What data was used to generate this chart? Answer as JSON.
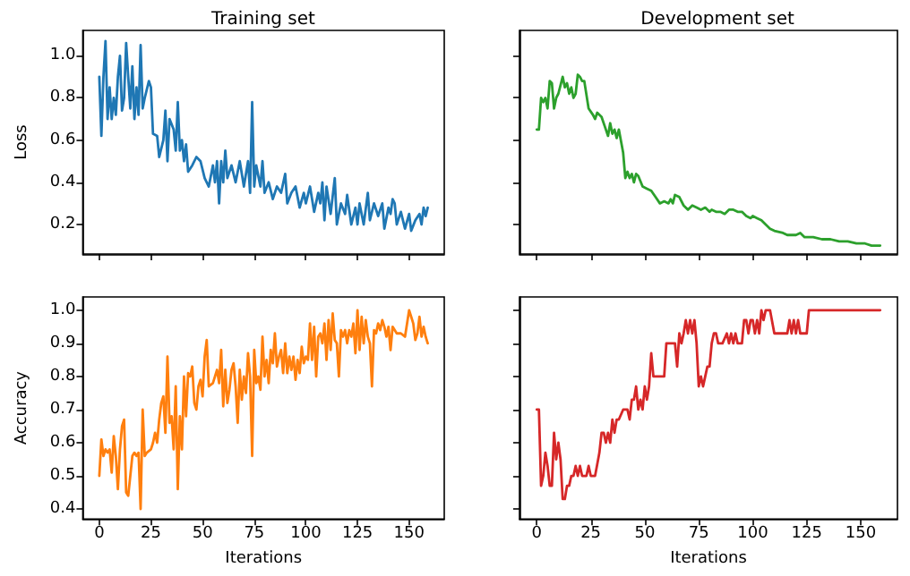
{
  "chart_data": [
    {
      "type": "line",
      "title": "Training set",
      "ylabel": "Loss",
      "xlim": [
        -8,
        167
      ],
      "xticks": [
        0,
        25,
        50,
        75,
        100,
        125,
        150
      ],
      "ylim": [
        0.06,
        1.12
      ],
      "yticks": [
        0.2,
        0.4,
        0.6,
        0.8,
        {
          "value": 1,
          "label": "1.0"
        }
      ],
      "tick_labels": "y",
      "grid": false,
      "series": [
        {
          "color": "#1f77b4",
          "x": [
            0,
            1,
            2,
            3,
            4,
            5,
            6,
            7,
            8,
            9,
            10,
            11,
            12,
            13,
            14,
            15,
            16,
            17,
            18,
            19,
            20,
            21,
            22,
            24,
            25,
            26,
            28,
            29,
            31,
            32,
            33,
            34,
            36,
            37,
            38,
            39,
            40,
            41,
            42,
            43,
            45,
            47,
            49,
            51,
            53,
            55,
            56,
            57,
            58,
            59,
            60,
            61,
            62,
            64,
            66,
            68,
            70,
            72,
            73,
            74,
            75,
            76,
            78,
            79,
            80,
            82,
            84,
            86,
            88,
            90,
            91,
            93,
            95,
            97,
            99,
            100,
            102,
            104,
            106,
            107,
            108,
            109,
            110,
            112,
            114,
            115,
            117,
            119,
            120,
            122,
            124,
            125,
            126,
            128,
            130,
            131,
            133,
            135,
            137,
            138,
            140,
            141,
            142,
            143,
            144,
            146,
            148,
            150,
            151,
            153,
            155,
            156,
            157,
            158,
            159
          ],
          "values": [
            0.9,
            0.62,
            0.9,
            1.07,
            0.7,
            0.85,
            0.7,
            0.8,
            0.72,
            0.9,
            1.0,
            0.74,
            0.8,
            1.06,
            0.9,
            0.75,
            0.95,
            0.7,
            0.85,
            0.72,
            1.05,
            0.75,
            0.8,
            0.88,
            0.85,
            0.63,
            0.62,
            0.52,
            0.6,
            0.74,
            0.5,
            0.7,
            0.65,
            0.55,
            0.78,
            0.55,
            0.6,
            0.5,
            0.58,
            0.45,
            0.48,
            0.52,
            0.5,
            0.42,
            0.38,
            0.48,
            0.4,
            0.5,
            0.3,
            0.5,
            0.4,
            0.55,
            0.42,
            0.48,
            0.4,
            0.5,
            0.38,
            0.5,
            0.35,
            0.78,
            0.38,
            0.48,
            0.38,
            0.5,
            0.35,
            0.4,
            0.32,
            0.38,
            0.35,
            0.44,
            0.3,
            0.35,
            0.38,
            0.28,
            0.35,
            0.3,
            0.38,
            0.26,
            0.35,
            0.3,
            0.4,
            0.22,
            0.38,
            0.25,
            0.42,
            0.2,
            0.3,
            0.25,
            0.34,
            0.2,
            0.28,
            0.2,
            0.3,
            0.2,
            0.35,
            0.22,
            0.3,
            0.24,
            0.3,
            0.18,
            0.28,
            0.25,
            0.32,
            0.3,
            0.2,
            0.26,
            0.18,
            0.25,
            0.17,
            0.22,
            0.25,
            0.2,
            0.28,
            0.24,
            0.28
          ]
        }
      ]
    },
    {
      "type": "line",
      "title": "Development set",
      "xlim": [
        -8,
        167
      ],
      "xticks": [
        0,
        25,
        50,
        75,
        100,
        125,
        150
      ],
      "ylim": [
        0.06,
        1.12
      ],
      "yticks": [
        0.2,
        0.4,
        0.6,
        0.8,
        1
      ],
      "tick_labels": false,
      "grid": false,
      "series": [
        {
          "color": "#2ca02c",
          "x": [
            0,
            1,
            2,
            3,
            4,
            5,
            6,
            7,
            8,
            9,
            10,
            12,
            13,
            14,
            15,
            16,
            17,
            18,
            19,
            20,
            21,
            22,
            24,
            26,
            27,
            28,
            30,
            32,
            33,
            34,
            35,
            36,
            37,
            38,
            40,
            41,
            42,
            43,
            44,
            45,
            46,
            47,
            49,
            51,
            53,
            55,
            57,
            59,
            61,
            62,
            63,
            64,
            66,
            68,
            70,
            72,
            74,
            76,
            78,
            80,
            81,
            83,
            85,
            87,
            89,
            91,
            93,
            95,
            97,
            99,
            100,
            102,
            104,
            106,
            108,
            110,
            114,
            116,
            120,
            122,
            124,
            128,
            132,
            136,
            140,
            144,
            148,
            152,
            155,
            159
          ],
          "values": [
            0.65,
            0.65,
            0.8,
            0.78,
            0.8,
            0.75,
            0.88,
            0.87,
            0.75,
            0.8,
            0.82,
            0.9,
            0.85,
            0.87,
            0.82,
            0.85,
            0.8,
            0.82,
            0.91,
            0.9,
            0.88,
            0.88,
            0.75,
            0.72,
            0.7,
            0.73,
            0.71,
            0.65,
            0.62,
            0.68,
            0.63,
            0.65,
            0.61,
            0.65,
            0.54,
            0.42,
            0.45,
            0.42,
            0.44,
            0.4,
            0.44,
            0.43,
            0.38,
            0.37,
            0.36,
            0.33,
            0.3,
            0.31,
            0.3,
            0.32,
            0.3,
            0.34,
            0.33,
            0.29,
            0.27,
            0.29,
            0.28,
            0.27,
            0.28,
            0.26,
            0.27,
            0.26,
            0.26,
            0.25,
            0.27,
            0.27,
            0.26,
            0.26,
            0.24,
            0.23,
            0.24,
            0.23,
            0.22,
            0.2,
            0.18,
            0.17,
            0.16,
            0.15,
            0.15,
            0.16,
            0.14,
            0.14,
            0.13,
            0.13,
            0.12,
            0.12,
            0.11,
            0.11,
            0.1,
            0.1
          ]
        }
      ]
    },
    {
      "type": "line",
      "xlabel": "Iterations",
      "ylabel": "Accuracy",
      "xlim": [
        -8,
        167
      ],
      "xticks": [
        0,
        25,
        50,
        75,
        100,
        125,
        150
      ],
      "ylim": [
        0.37,
        1.04
      ],
      "yticks": [
        0.4,
        0.5,
        0.6,
        0.7,
        0.8,
        0.9,
        {
          "value": 1,
          "label": "1.0"
        }
      ],
      "grid": false,
      "series": [
        {
          "color": "#ff7f0e",
          "x": [
            0,
            1,
            2,
            3,
            4,
            5,
            6,
            7,
            8,
            9,
            10,
            11,
            12,
            13,
            14,
            15,
            16,
            17,
            18,
            19,
            20,
            21,
            22,
            23,
            25,
            26,
            27,
            28,
            29,
            30,
            31,
            32,
            33,
            34,
            35,
            36,
            37,
            38,
            39,
            40,
            41,
            42,
            43,
            44,
            45,
            46,
            47,
            48,
            49,
            50,
            51,
            52,
            53,
            55,
            57,
            58,
            59,
            60,
            61,
            62,
            63,
            64,
            65,
            66,
            67,
            68,
            69,
            70,
            71,
            72,
            73,
            74,
            75,
            76,
            77,
            78,
            79,
            80,
            81,
            82,
            83,
            84,
            85,
            86,
            87,
            88,
            89,
            90,
            91,
            92,
            93,
            94,
            95,
            96,
            97,
            98,
            99,
            100,
            101,
            102,
            103,
            104,
            105,
            106,
            107,
            108,
            109,
            110,
            111,
            112,
            113,
            114,
            115,
            116,
            117,
            118,
            119,
            120,
            121,
            122,
            123,
            124,
            125,
            126,
            127,
            128,
            129,
            130,
            131,
            132,
            133,
            134,
            135,
            136,
            137,
            138,
            139,
            140,
            141,
            142,
            143,
            144,
            146,
            148,
            150,
            151,
            152,
            153,
            154,
            155,
            156,
            157,
            158,
            159
          ],
          "values": [
            0.5,
            0.61,
            0.56,
            0.58,
            0.57,
            0.58,
            0.51,
            0.62,
            0.56,
            0.46,
            0.58,
            0.65,
            0.67,
            0.45,
            0.44,
            0.5,
            0.56,
            0.57,
            0.56,
            0.57,
            0.4,
            0.7,
            0.56,
            0.57,
            0.58,
            0.6,
            0.63,
            0.6,
            0.67,
            0.72,
            0.74,
            0.63,
            0.86,
            0.66,
            0.68,
            0.58,
            0.77,
            0.46,
            0.68,
            0.58,
            0.8,
            0.68,
            0.81,
            0.8,
            0.83,
            0.72,
            0.7,
            0.77,
            0.79,
            0.74,
            0.86,
            0.91,
            0.77,
            0.78,
            0.82,
            0.78,
            0.88,
            0.71,
            0.82,
            0.72,
            0.76,
            0.82,
            0.84,
            0.77,
            0.66,
            0.82,
            0.73,
            0.8,
            0.75,
            0.87,
            0.8,
            0.56,
            0.88,
            0.78,
            0.8,
            0.76,
            0.92,
            0.8,
            0.85,
            0.78,
            0.88,
            0.84,
            0.93,
            0.83,
            0.86,
            0.88,
            0.81,
            0.9,
            0.81,
            0.86,
            0.82,
            0.86,
            0.79,
            0.85,
            0.81,
            0.89,
            0.84,
            0.86,
            0.85,
            0.96,
            0.85,
            0.95,
            0.8,
            0.92,
            0.93,
            0.9,
            0.96,
            0.85,
            0.97,
            0.88,
            0.99,
            0.91,
            0.9,
            0.8,
            0.94,
            0.92,
            0.94,
            0.9,
            0.94,
            0.92,
            0.96,
            0.87,
            1.0,
            0.88,
            0.98,
            0.9,
            0.97,
            0.92,
            0.9,
            0.77,
            0.94,
            0.93,
            0.96,
            0.94,
            0.97,
            0.95,
            0.92,
            0.95,
            0.88,
            0.95,
            0.94,
            0.93,
            0.93,
            0.92,
            1.0,
            0.98,
            0.96,
            0.91,
            0.93,
            0.98,
            0.92,
            0.95,
            0.92,
            0.9
          ]
        }
      ]
    },
    {
      "type": "line",
      "xlabel": "Iterations",
      "xlim": [
        -8,
        167
      ],
      "xticks": [
        0,
        25,
        50,
        75,
        100,
        125,
        150
      ],
      "ylim": [
        0.37,
        1.04
      ],
      "yticks": [
        0.4,
        0.5,
        0.6,
        0.7,
        0.8,
        0.9,
        1
      ],
      "tick_labels": "x",
      "grid": false,
      "series": [
        {
          "color": "#d62728",
          "x": [
            0,
            1,
            2,
            3,
            4,
            5,
            6,
            7,
            8,
            9,
            10,
            11,
            12,
            13,
            14,
            15,
            16,
            17,
            18,
            19,
            20,
            21,
            23,
            24,
            25,
            27,
            29,
            30,
            31,
            32,
            33,
            34,
            35,
            36,
            37,
            38,
            40,
            42,
            43,
            44,
            45,
            46,
            47,
            48,
            49,
            50,
            51,
            52,
            53,
            54,
            56,
            58,
            59,
            60,
            62,
            64,
            65,
            66,
            67,
            68,
            69,
            70,
            71,
            72,
            73,
            74,
            75,
            76,
            77,
            78,
            79,
            80,
            81,
            82,
            83,
            84,
            86,
            88,
            89,
            90,
            91,
            92,
            93,
            95,
            96,
            97,
            98,
            99,
            100,
            101,
            102,
            103,
            104,
            105,
            106,
            108,
            110,
            112,
            116,
            117,
            118,
            119,
            120,
            121,
            122,
            125,
            126,
            159
          ],
          "values": [
            0.7,
            0.7,
            0.47,
            0.5,
            0.57,
            0.53,
            0.47,
            0.47,
            0.63,
            0.55,
            0.6,
            0.55,
            0.43,
            0.43,
            0.47,
            0.47,
            0.5,
            0.5,
            0.53,
            0.5,
            0.53,
            0.5,
            0.5,
            0.53,
            0.5,
            0.5,
            0.57,
            0.63,
            0.63,
            0.6,
            0.63,
            0.6,
            0.67,
            0.63,
            0.67,
            0.67,
            0.7,
            0.7,
            0.67,
            0.73,
            0.73,
            0.77,
            0.7,
            0.73,
            0.7,
            0.77,
            0.73,
            0.77,
            0.87,
            0.8,
            0.8,
            0.8,
            0.8,
            0.9,
            0.9,
            0.9,
            0.83,
            0.93,
            0.9,
            0.93,
            0.97,
            0.93,
            0.97,
            0.93,
            0.97,
            0.9,
            0.77,
            0.8,
            0.77,
            0.8,
            0.83,
            0.83,
            0.9,
            0.93,
            0.93,
            0.9,
            0.9,
            0.93,
            0.9,
            0.93,
            0.9,
            0.93,
            0.9,
            0.9,
            0.97,
            0.97,
            0.93,
            0.97,
            0.97,
            0.93,
            0.97,
            0.93,
            1.0,
            0.97,
            1.0,
            1.0,
            0.93,
            0.93,
            0.93,
            0.97,
            0.93,
            0.97,
            0.93,
            0.97,
            0.93,
            0.93,
            1.0,
            1.0
          ]
        }
      ]
    }
  ]
}
